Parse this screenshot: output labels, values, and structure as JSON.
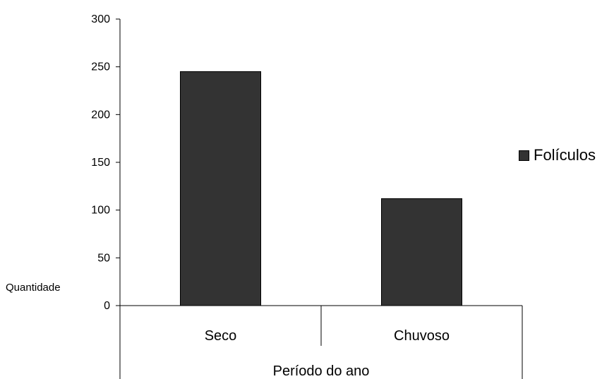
{
  "chart_data": {
    "type": "bar",
    "title": "",
    "xlabel": "Período do ano",
    "ylabel": "Quantidade",
    "categories": [
      "Seco",
      "Chuvoso"
    ],
    "series": [
      {
        "name": "Folículos",
        "values": [
          245,
          112
        ],
        "color": "#333333"
      }
    ],
    "ylim": [
      0,
      300
    ],
    "yticks": [
      "0",
      "50",
      "100",
      "150",
      "200",
      "250",
      "300"
    ],
    "legend_position": "right",
    "grid": false
  }
}
